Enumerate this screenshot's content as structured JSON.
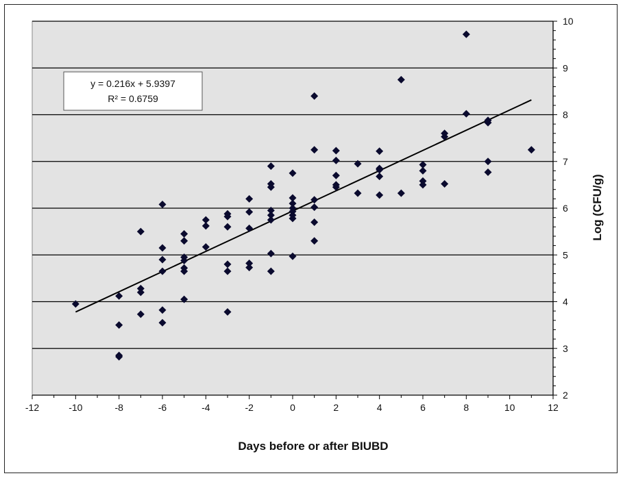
{
  "chart_data": {
    "type": "scatter",
    "title": "",
    "xlabel": "Days before or after BIUBD",
    "ylabel": "Log (CFU/g)",
    "xlim": [
      -12,
      12
    ],
    "ylim": [
      2,
      10
    ],
    "x_ticks": [
      -12,
      -10,
      -8,
      -6,
      -4,
      -2,
      0,
      2,
      4,
      6,
      8,
      10,
      12
    ],
    "y_ticks": [
      2,
      3,
      4,
      5,
      6,
      7,
      8,
      9,
      10
    ],
    "y_axis_side": "right",
    "grid": "horizontal",
    "plot_background": "#e3e3e3",
    "marker": "diamond",
    "marker_color": "#0a0a2e",
    "trendline": {
      "slope": 0.216,
      "intercept": 5.9397,
      "x_range": [
        -10,
        11
      ],
      "equation_label": "y = 0.216x + 5.9397",
      "r2_label": "R² = 0.6759"
    },
    "points": [
      [
        -10,
        3.95
      ],
      [
        -8,
        4.12
      ],
      [
        -8,
        3.5
      ],
      [
        -8,
        2.85
      ],
      [
        -8,
        2.82
      ],
      [
        -7,
        5.5
      ],
      [
        -7,
        4.28
      ],
      [
        -7,
        4.2
      ],
      [
        -7,
        3.73
      ],
      [
        -6,
        6.08
      ],
      [
        -6,
        5.15
      ],
      [
        -6,
        4.9
      ],
      [
        -6,
        4.65
      ],
      [
        -6,
        3.82
      ],
      [
        -6,
        3.55
      ],
      [
        -5,
        5.45
      ],
      [
        -5,
        5.3
      ],
      [
        -5,
        4.95
      ],
      [
        -5,
        4.88
      ],
      [
        -5,
        4.72
      ],
      [
        -5,
        4.65
      ],
      [
        -5,
        4.05
      ],
      [
        -4,
        5.75
      ],
      [
        -4,
        5.62
      ],
      [
        -4,
        5.17
      ],
      [
        -3,
        5.88
      ],
      [
        -3,
        5.82
      ],
      [
        -3,
        5.6
      ],
      [
        -3,
        4.8
      ],
      [
        -3,
        4.65
      ],
      [
        -3,
        3.78
      ],
      [
        -2,
        6.2
      ],
      [
        -2,
        5.92
      ],
      [
        -2,
        5.57
      ],
      [
        -2,
        4.82
      ],
      [
        -2,
        4.73
      ],
      [
        -1,
        6.9
      ],
      [
        -1,
        6.52
      ],
      [
        -1,
        6.45
      ],
      [
        -1,
        5.95
      ],
      [
        -1,
        5.85
      ],
      [
        -1,
        5.75
      ],
      [
        -1,
        5.03
      ],
      [
        -1,
        4.65
      ],
      [
        0,
        6.75
      ],
      [
        0,
        6.22
      ],
      [
        0,
        6.1
      ],
      [
        0,
        6.0
      ],
      [
        0,
        5.93
      ],
      [
        0,
        5.85
      ],
      [
        0,
        5.78
      ],
      [
        0,
        4.97
      ],
      [
        1,
        8.4
      ],
      [
        1,
        7.25
      ],
      [
        1,
        6.18
      ],
      [
        1,
        6.02
      ],
      [
        1,
        5.7
      ],
      [
        1,
        5.3
      ],
      [
        2,
        7.23
      ],
      [
        2,
        7.02
      ],
      [
        2,
        6.7
      ],
      [
        2,
        6.5
      ],
      [
        2,
        6.45
      ],
      [
        3,
        6.95
      ],
      [
        3,
        6.32
      ],
      [
        4,
        7.22
      ],
      [
        4,
        6.85
      ],
      [
        4,
        6.82
      ],
      [
        4,
        6.68
      ],
      [
        4,
        6.28
      ],
      [
        5,
        8.75
      ],
      [
        5,
        6.32
      ],
      [
        6,
        6.93
      ],
      [
        6,
        6.8
      ],
      [
        6,
        6.58
      ],
      [
        6,
        6.5
      ],
      [
        7,
        7.6
      ],
      [
        7,
        7.53
      ],
      [
        7,
        6.52
      ],
      [
        8,
        9.72
      ],
      [
        8,
        8.02
      ],
      [
        9,
        7.88
      ],
      [
        9,
        7.83
      ],
      [
        9,
        7.0
      ],
      [
        9,
        6.77
      ],
      [
        11,
        7.25
      ]
    ]
  }
}
